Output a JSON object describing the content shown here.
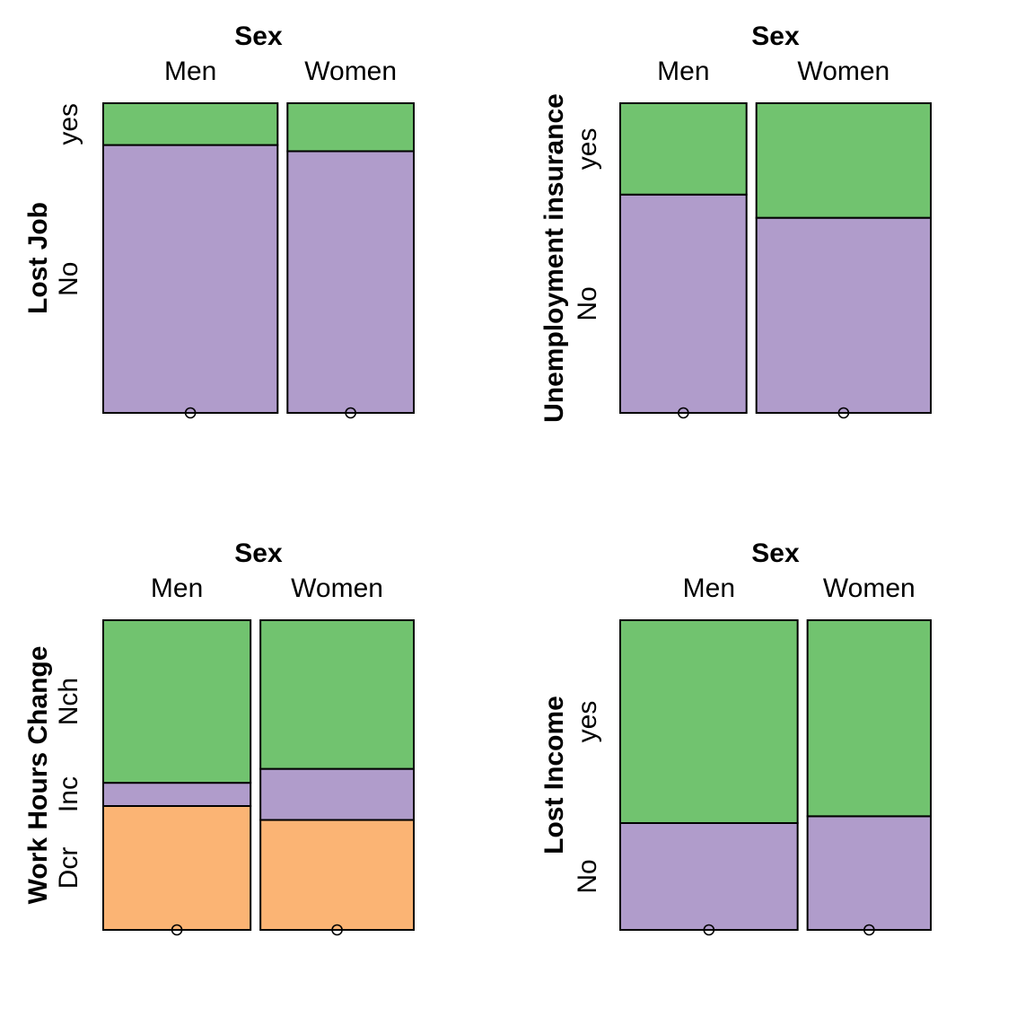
{
  "colors": {
    "No": "#B09CCB",
    "yes": "#71C36F",
    "Dcr": "#FBB474",
    "Inc": "#B09CCB",
    "Nch": "#71C36F"
  },
  "chart_data": [
    {
      "type": "mosaic",
      "title": "Sex",
      "ylabel": "Lost Job",
      "categories": [
        "Men",
        "Women"
      ],
      "column_widths": [
        0.58,
        0.42
      ],
      "levels": [
        "No",
        "yes"
      ],
      "proportions": [
        [
          0.865,
          0.135
        ],
        [
          0.845,
          0.155
        ]
      ]
    },
    {
      "type": "mosaic",
      "title": "Sex",
      "ylabel": "Unemployment insurance",
      "categories": [
        "Men",
        "Women"
      ],
      "column_widths": [
        0.42,
        0.58
      ],
      "levels": [
        "No",
        "yes"
      ],
      "proportions": [
        [
          0.705,
          0.295
        ],
        [
          0.63,
          0.37
        ]
      ]
    },
    {
      "type": "mosaic",
      "title": "Sex",
      "ylabel": "Work Hours Change",
      "categories": [
        "Men",
        "Women"
      ],
      "column_widths": [
        0.49,
        0.51
      ],
      "levels": [
        "Dcr",
        "Inc",
        "Nch"
      ],
      "proportions": [
        [
          0.4,
          0.075,
          0.525
        ],
        [
          0.355,
          0.165,
          0.48
        ]
      ]
    },
    {
      "type": "mosaic",
      "title": "Sex",
      "ylabel": "Lost Income",
      "categories": [
        "Men",
        "Women"
      ],
      "column_widths": [
        0.59,
        0.41
      ],
      "levels": [
        "No",
        "yes"
      ],
      "proportions": [
        [
          0.345,
          0.655
        ],
        [
          0.367,
          0.633
        ]
      ]
    }
  ]
}
